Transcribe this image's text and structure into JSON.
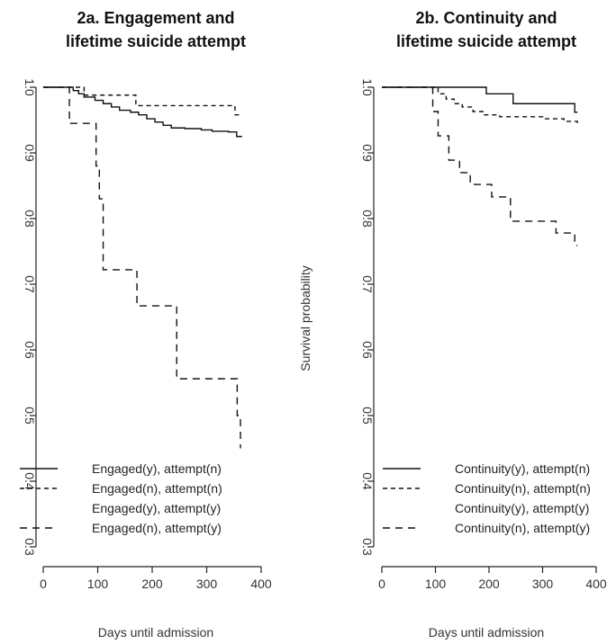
{
  "chart_data": [
    {
      "type": "line",
      "title_line1": "2a. Engagement and",
      "title_line2": "lifetime suicide attempt",
      "xlabel": "Days until admission",
      "ylabel": "",
      "xlim": [
        0,
        400
      ],
      "ylim": [
        0.3,
        1.0
      ],
      "xticks": [
        "0",
        "100",
        "200",
        "300",
        "400"
      ],
      "yticks": [
        "0.3",
        "0.4",
        "0.5",
        "0.6",
        "0.7",
        "0.8",
        "0.9",
        "1.0"
      ],
      "ytick_values": [
        0.3,
        0.4,
        0.5,
        0.6,
        0.7,
        0.8,
        0.9,
        1.0
      ],
      "xtick_values": [
        0,
        100,
        200,
        300,
        400
      ],
      "legend_position": "bottom-left",
      "series": [
        {
          "name": "Engaged(y), attempt(n)",
          "style": "solid",
          "color": "#111111",
          "points": [
            [
              0,
              1.0
            ],
            [
              45,
              1.0
            ],
            [
              55,
              0.995
            ],
            [
              65,
              0.99
            ],
            [
              75,
              0.985
            ],
            [
              95,
              0.98
            ],
            [
              110,
              0.975
            ],
            [
              125,
              0.97
            ],
            [
              140,
              0.965
            ],
            [
              160,
              0.962
            ],
            [
              175,
              0.958
            ],
            [
              190,
              0.952
            ],
            [
              205,
              0.947
            ],
            [
              220,
              0.942
            ],
            [
              235,
              0.938
            ],
            [
              260,
              0.937
            ],
            [
              290,
              0.935
            ],
            [
              310,
              0.933
            ],
            [
              340,
              0.932
            ],
            [
              355,
              0.925
            ],
            [
              365,
              0.925
            ]
          ]
        },
        {
          "name": "Engaged(n), attempt(n)",
          "style": "dashed",
          "color": "#111111",
          "points": [
            [
              0,
              1.0
            ],
            [
              65,
              1.0
            ],
            [
              75,
              0.988
            ],
            [
              150,
              0.988
            ],
            [
              170,
              0.972
            ],
            [
              345,
              0.972
            ],
            [
              352,
              0.958
            ],
            [
              365,
              0.958
            ]
          ]
        },
        {
          "name": "Engaged(y), attempt(y)",
          "style": "none",
          "color": "#bbbbbb",
          "points": []
        },
        {
          "name": "Engaged(n), attempt(y)",
          "style": "dashed-long",
          "color": "#111111",
          "points": [
            [
              0,
              1.0
            ],
            [
              40,
              1.0
            ],
            [
              48,
              0.945
            ],
            [
              90,
              0.945
            ],
            [
              97,
              0.88
            ],
            [
              103,
              0.83
            ],
            [
              110,
              0.722
            ],
            [
              170,
              0.722
            ],
            [
              172,
              0.667
            ],
            [
              240,
              0.667
            ],
            [
              245,
              0.556
            ],
            [
              350,
              0.556
            ],
            [
              356,
              0.5
            ],
            [
              362,
              0.45
            ]
          ]
        }
      ]
    },
    {
      "type": "line",
      "title_line1": "2b. Continuity and",
      "title_line2": "lifetime suicide attempt",
      "xlabel": "Days until admission",
      "ylabel": "Survival probability",
      "xlim": [
        0,
        400
      ],
      "ylim": [
        0.3,
        1.0
      ],
      "xticks": [
        "0",
        "100",
        "200",
        "300",
        "400"
      ],
      "yticks": [
        "0.3",
        "0.4",
        "0.5",
        "0.6",
        "0.7",
        "0.8",
        "0.9",
        "1.0"
      ],
      "ytick_values": [
        0.3,
        0.4,
        0.5,
        0.6,
        0.7,
        0.8,
        0.9,
        1.0
      ],
      "xtick_values": [
        0,
        100,
        200,
        300,
        400
      ],
      "legend_position": "bottom-left",
      "series": [
        {
          "name": "Continuity(y), attempt(n)",
          "style": "solid",
          "color": "#111111",
          "points": [
            [
              0,
              1.0
            ],
            [
              180,
              1.0
            ],
            [
              195,
              0.99
            ],
            [
              235,
              0.99
            ],
            [
              245,
              0.975
            ],
            [
              355,
              0.975
            ],
            [
              360,
              0.962
            ],
            [
              365,
              0.962
            ]
          ]
        },
        {
          "name": "Continuity(n), attempt(n)",
          "style": "dashed",
          "color": "#111111",
          "points": [
            [
              0,
              1.0
            ],
            [
              95,
              1.0
            ],
            [
              105,
              0.99
            ],
            [
              120,
              0.982
            ],
            [
              135,
              0.975
            ],
            [
              150,
              0.97
            ],
            [
              170,
              0.963
            ],
            [
              190,
              0.958
            ],
            [
              220,
              0.955
            ],
            [
              260,
              0.955
            ],
            [
              300,
              0.952
            ],
            [
              340,
              0.948
            ],
            [
              365,
              0.945
            ]
          ]
        },
        {
          "name": "Continuity(y), attempt(y)",
          "style": "none",
          "color": "#bbbbbb",
          "points": []
        },
        {
          "name": "Continuity(n), attempt(y)",
          "style": "dashed-long",
          "color": "#111111",
          "points": [
            [
              0,
              1.0
            ],
            [
              90,
              1.0
            ],
            [
              95,
              0.963
            ],
            [
              105,
              0.926
            ],
            [
              125,
              0.889
            ],
            [
              145,
              0.87
            ],
            [
              165,
              0.852
            ],
            [
              195,
              0.852
            ],
            [
              205,
              0.833
            ],
            [
              230,
              0.833
            ],
            [
              240,
              0.796
            ],
            [
              320,
              0.796
            ],
            [
              325,
              0.778
            ],
            [
              355,
              0.778
            ],
            [
              360,
              0.759
            ],
            [
              365,
              0.759
            ]
          ]
        }
      ]
    }
  ]
}
